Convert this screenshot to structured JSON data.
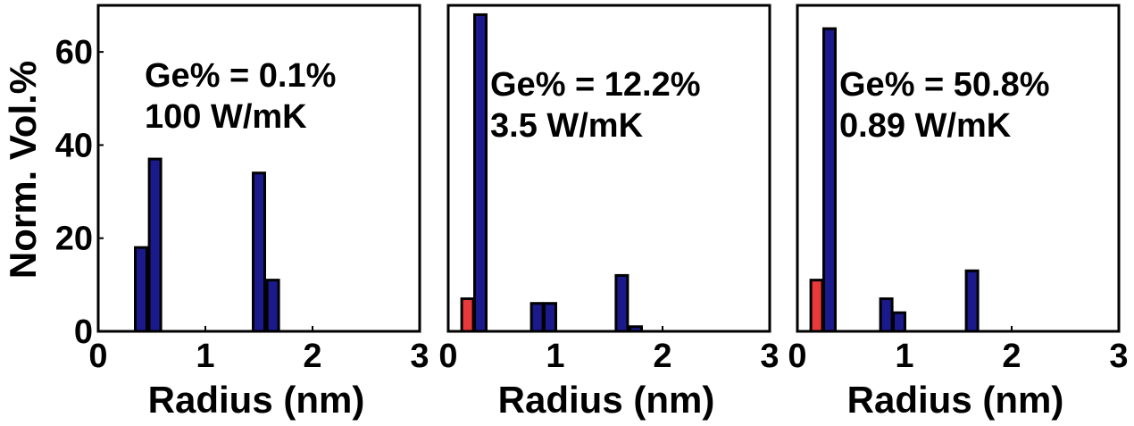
{
  "colors": {
    "main": "#1a1a8c",
    "accent": "#e83a3a"
  },
  "y_axis_label": "Norm. Vol.%",
  "chart_data": [
    {
      "type": "bar",
      "xlabel": "Radius (nm)",
      "ylabel": "Norm. Vol.%",
      "xlim": [
        0,
        3
      ],
      "ylim": [
        0,
        70
      ],
      "xticks": [
        "0",
        "1",
        "2",
        "3"
      ],
      "yticks": [
        "0",
        "20",
        "40",
        "60"
      ],
      "annotations": [
        "Ge% = 0.1%",
        "100 W/mK"
      ],
      "series": [
        {
          "color": "#1a1a8c",
          "points": [
            {
              "x": 0.4,
              "y": 18
            },
            {
              "x": 0.53,
              "y": 37
            },
            {
              "x": 1.5,
              "y": 34
            },
            {
              "x": 1.63,
              "y": 11
            }
          ]
        }
      ]
    },
    {
      "type": "bar",
      "xlabel": "Radius (nm)",
      "ylabel": "",
      "xlim": [
        0,
        3
      ],
      "ylim": [
        0,
        70
      ],
      "xticks": [
        "0",
        "1",
        "2",
        "3"
      ],
      "yticks": [],
      "annotations": [
        "Ge% = 12.2%",
        "3.5 W/mK"
      ],
      "series": [
        {
          "color": "#e83a3a",
          "points": [
            {
              "x": 0.18,
              "y": 7
            }
          ]
        },
        {
          "color": "#1a1a8c",
          "points": [
            {
              "x": 0.3,
              "y": 68
            },
            {
              "x": 0.83,
              "y": 6
            },
            {
              "x": 0.95,
              "y": 6
            },
            {
              "x": 1.62,
              "y": 12
            },
            {
              "x": 1.75,
              "y": 1
            }
          ]
        }
      ]
    },
    {
      "type": "bar",
      "xlabel": "Radius (nm)",
      "ylabel": "",
      "xlim": [
        0,
        3
      ],
      "ylim": [
        0,
        70
      ],
      "xticks": [
        "0",
        "1",
        "2",
        "3"
      ],
      "yticks": [],
      "annotations": [
        "Ge% = 50.8%",
        "0.89 W/mK"
      ],
      "series": [
        {
          "color": "#e83a3a",
          "points": [
            {
              "x": 0.18,
              "y": 11
            }
          ]
        },
        {
          "color": "#1a1a8c",
          "points": [
            {
              "x": 0.3,
              "y": 65
            },
            {
              "x": 0.83,
              "y": 7
            },
            {
              "x": 0.95,
              "y": 4
            },
            {
              "x": 1.63,
              "y": 13
            }
          ]
        }
      ]
    }
  ]
}
